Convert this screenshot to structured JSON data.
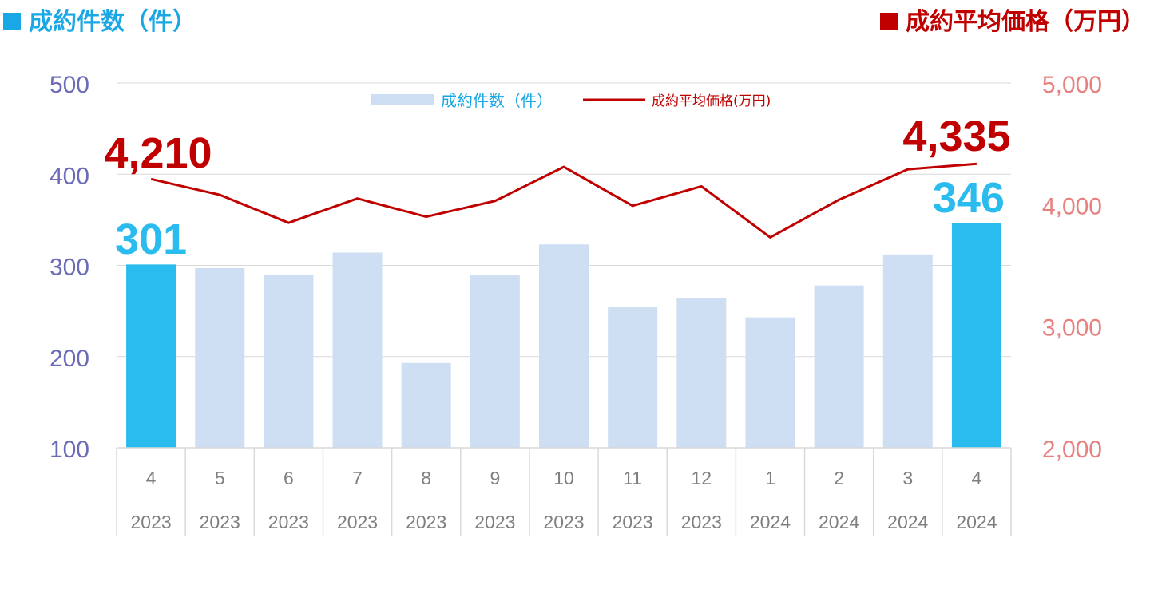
{
  "header": {
    "left_title": "成約件数（件）",
    "right_title": "成約平均価格（万円）"
  },
  "colors": {
    "bar_default": "#cfdff3",
    "bar_highlight": "#2bbcef",
    "line": "#c00000",
    "left_axis": "#6b6bb8",
    "right_axis": "#e88080",
    "grid": "#d9d9d9",
    "category_text": "#7f7f7f"
  },
  "chart_data": {
    "type": "bar",
    "categories": [
      {
        "month": "4",
        "year": "2023"
      },
      {
        "month": "5",
        "year": "2023"
      },
      {
        "month": "6",
        "year": "2023"
      },
      {
        "month": "7",
        "year": "2023"
      },
      {
        "month": "8",
        "year": "2023"
      },
      {
        "month": "9",
        "year": "2023"
      },
      {
        "month": "10",
        "year": "2023"
      },
      {
        "month": "11",
        "year": "2023"
      },
      {
        "month": "12",
        "year": "2023"
      },
      {
        "month": "1",
        "year": "2024"
      },
      {
        "month": "2",
        "year": "2024"
      },
      {
        "month": "3",
        "year": "2024"
      },
      {
        "month": "4",
        "year": "2024"
      }
    ],
    "series": [
      {
        "name": "成約件数（件）",
        "kind": "bar",
        "axis": "left",
        "values": [
          301,
          297,
          290,
          314,
          193,
          289,
          323,
          254,
          264,
          243,
          278,
          312,
          346
        ],
        "highlight_indices": [
          0,
          12
        ]
      },
      {
        "name": "成約平均価格(万円)",
        "kind": "line",
        "axis": "right",
        "values": [
          4210,
          4080,
          3850,
          4050,
          3900,
          4030,
          4310,
          3990,
          4150,
          3730,
          4040,
          4290,
          4335
        ]
      }
    ],
    "left_axis": {
      "min": 100,
      "max": 500,
      "ticks": [
        "100",
        "200",
        "300",
        "400",
        "500"
      ]
    },
    "right_axis": {
      "min": 2000,
      "max": 5000,
      "ticks": [
        "2,000",
        "3,000",
        "4,000",
        "5,000"
      ]
    },
    "annotations": {
      "bar_first": "301",
      "bar_last": "346",
      "line_first": "4,210",
      "line_last": "4,335"
    },
    "legend_position": "top-center",
    "grid": true
  }
}
